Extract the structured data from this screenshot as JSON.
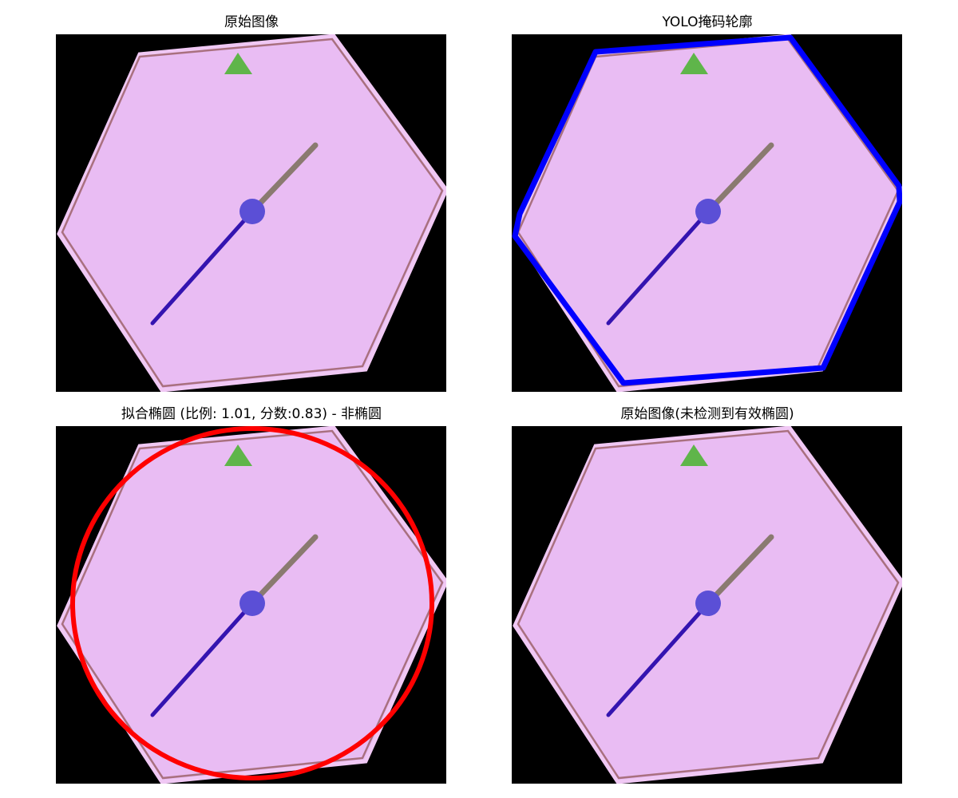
{
  "panels": [
    {
      "title": "原始图像"
    },
    {
      "title": "YOLO掩码轮廓"
    },
    {
      "title": "拟合椭圆 (比例: 1.01, 分数:0.83) - 非椭圆"
    },
    {
      "title": "原始图像(未检测到有效椭圆)"
    }
  ],
  "colors": {
    "background": "#000000",
    "hexagon_fill": "#e9bcf3",
    "hexagon_edge": "#a9707f",
    "hexagon_halo": "#f0c8f4",
    "triangle": "#5fb54a",
    "hub": "#5b4fd6",
    "hand_long": "#3414b0",
    "hand_short": "#8a7a70",
    "yolo_contour": "#0000ff",
    "fitted_ellipse": "#ff0000"
  }
}
